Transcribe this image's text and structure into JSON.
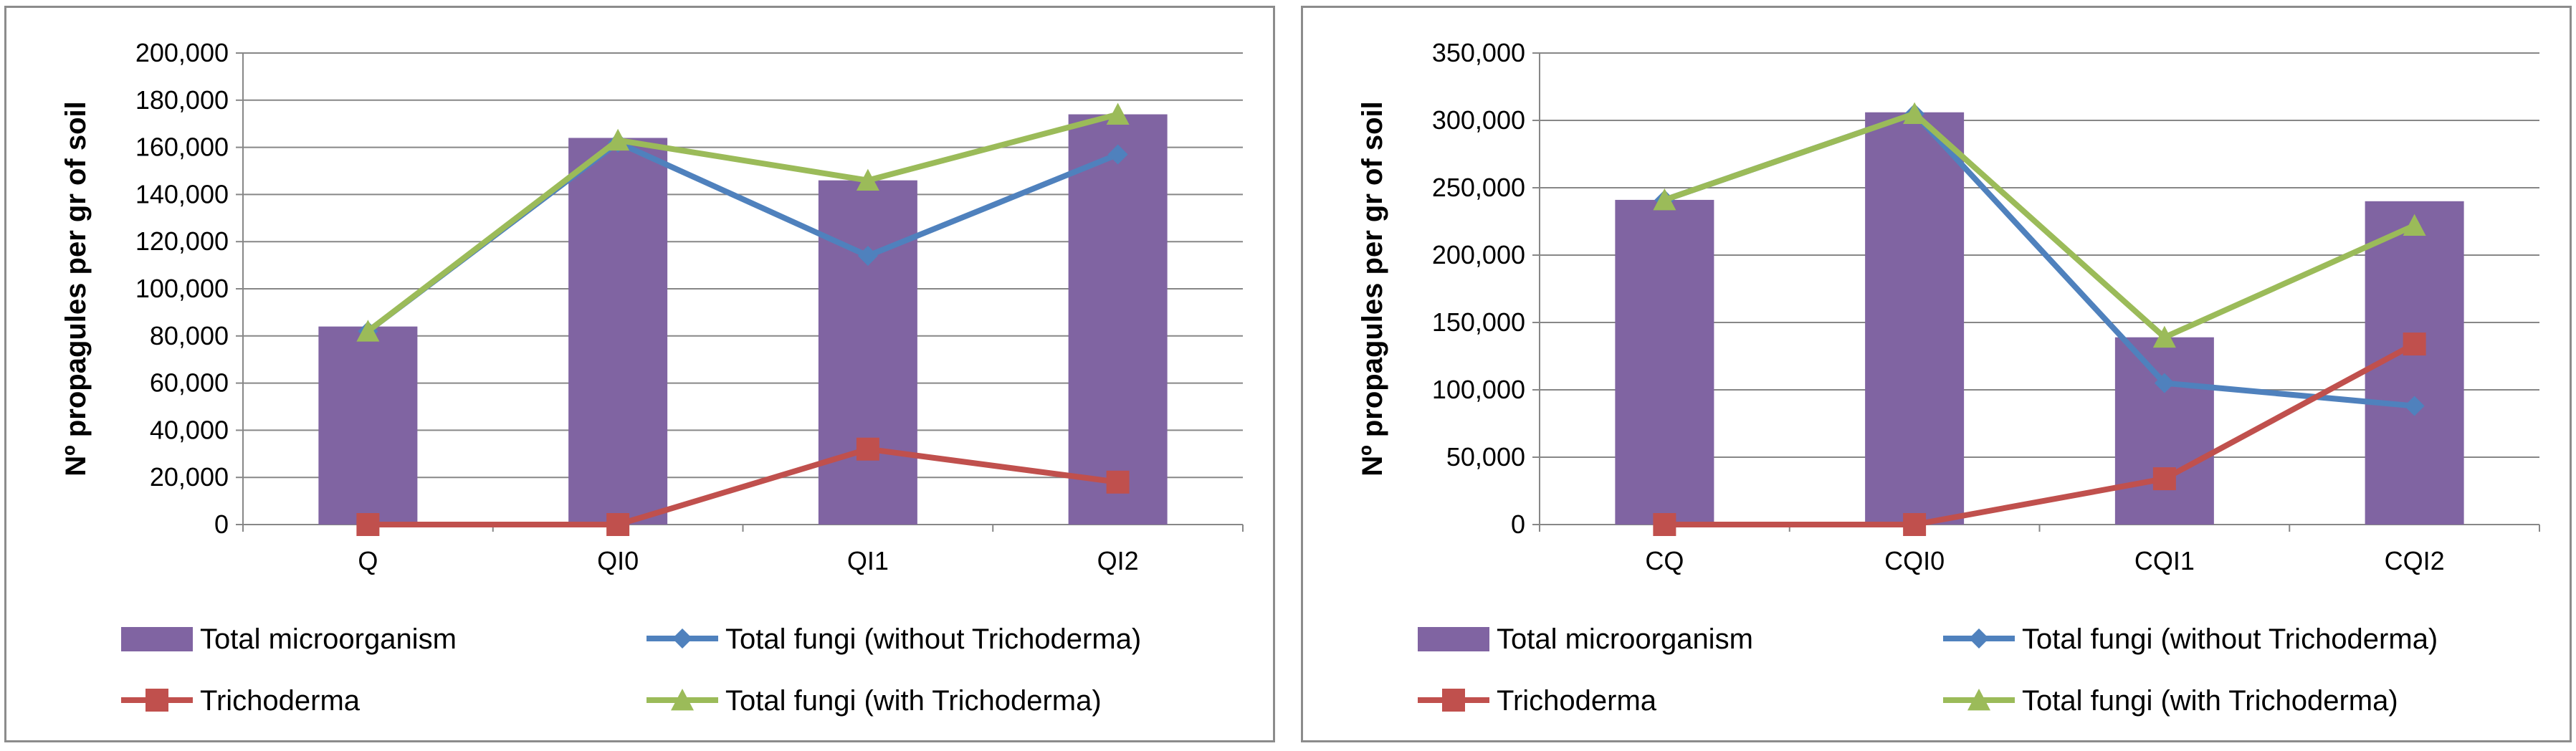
{
  "charts": [
    {
      "chart_data": {
        "type": "bar+line",
        "title": "",
        "xlabel": "",
        "ylabel": "Nº propagules per gr of soil",
        "ylim": [
          0,
          200000
        ],
        "ytick_step": 20000,
        "yticks": [
          "0",
          "20,000",
          "40,000",
          "60,000",
          "80,000",
          "100,000",
          "120,000",
          "140,000",
          "160,000",
          "180,000",
          "200,000"
        ],
        "categories": [
          "Q",
          "QI0",
          "QI1",
          "QI2"
        ],
        "series": [
          {
            "name": "Total microorganism",
            "kind": "bar",
            "color": "#8064a2",
            "values": [
              84000,
              164000,
              146000,
              174000
            ]
          },
          {
            "name": "Total fungi (without Trichoderma)",
            "kind": "line",
            "marker": "diamond",
            "color": "#4f81bd",
            "values": [
              82000,
              162000,
              114000,
              157000
            ]
          },
          {
            "name": "Trichoderma",
            "kind": "line",
            "marker": "square",
            "color": "#c0504d",
            "values": [
              0,
              0,
              32000,
              18000
            ]
          },
          {
            "name": "Total fungi (with Trichoderma)",
            "kind": "line",
            "marker": "triangle",
            "color": "#9bbb59",
            "values": [
              82000,
              163000,
              146000,
              174000
            ]
          }
        ],
        "legend_position": "bottom"
      }
    },
    {
      "chart_data": {
        "type": "bar+line",
        "title": "",
        "xlabel": "",
        "ylabel": "Nº propagules per gr of  soil",
        "ylim": [
          0,
          350000
        ],
        "ytick_step": 50000,
        "yticks": [
          "0",
          "50,000",
          "100,000",
          "150,000",
          "200,000",
          "250,000",
          "300,000",
          "350,000"
        ],
        "categories": [
          "CQ",
          "CQI0",
          "CQI1",
          "CQI2"
        ],
        "series": [
          {
            "name": "Total microorganism",
            "kind": "bar",
            "color": "#8064a2",
            "values": [
              241000,
              306000,
              139000,
              240000
            ]
          },
          {
            "name": "Total fungi (without Trichoderma)",
            "kind": "line",
            "marker": "diamond",
            "color": "#4f81bd",
            "values": [
              241000,
              305000,
              105000,
              88000
            ]
          },
          {
            "name": "Trichoderma",
            "kind": "line",
            "marker": "square",
            "color": "#c0504d",
            "values": [
              0,
              0,
              34000,
              134000
            ]
          },
          {
            "name": "Total fungi (with Trichoderma)",
            "kind": "line",
            "marker": "triangle",
            "color": "#9bbb59",
            "values": [
              241000,
              305000,
              139000,
              222000
            ]
          }
        ],
        "legend_position": "bottom"
      }
    }
  ],
  "chart_data": [
    {
      "type": "bar+line",
      "ylabel": "Nº propagules per gr of soil",
      "categories": [
        "Q",
        "QI0",
        "QI1",
        "QI2"
      ]
    },
    {
      "type": "bar+line",
      "ylabel": "Nº propagules per gr of  soil",
      "categories": [
        "CQ",
        "CQI0",
        "CQI1",
        "CQI2"
      ]
    }
  ]
}
